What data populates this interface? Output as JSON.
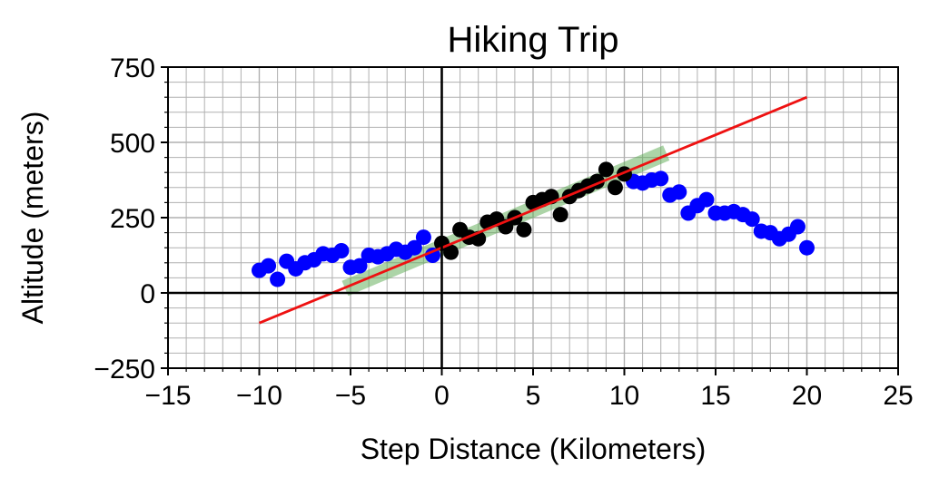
{
  "chart_data": {
    "type": "scatter",
    "title": "Hiking  Trip",
    "xlabel": "Step Distance (Kilometers)",
    "ylabel": "Altitude (meters)",
    "xlim": [
      -15,
      25
    ],
    "ylim": [
      -250,
      750
    ],
    "xticks": [
      -15,
      -10,
      -5,
      0,
      5,
      10,
      15,
      20,
      25
    ],
    "yticks": [
      -250,
      0,
      250,
      500,
      750
    ],
    "x_minor_step": 1,
    "y_minor_step": 50,
    "grid": true,
    "colors": {
      "blue_points": "#0000ff",
      "black_points": "#000000",
      "fit_line": "#ee1111",
      "band": "#5aaa50",
      "grid": "#b0b0b0"
    },
    "series": [
      {
        "points": [
          [
            -10,
            75
          ],
          [
            -9.5,
            90
          ],
          [
            -9,
            45
          ],
          [
            -8.5,
            105
          ],
          [
            -8,
            80
          ],
          [
            -7.5,
            100
          ],
          [
            -7,
            110
          ],
          [
            -6.5,
            130
          ],
          [
            -6,
            125
          ],
          [
            -5.5,
            140
          ],
          [
            -5,
            85
          ],
          [
            -4.5,
            90
          ],
          [
            -4,
            125
          ],
          [
            -3.5,
            120
          ],
          [
            -3,
            130
          ],
          [
            -2.5,
            145
          ],
          [
            -2,
            135
          ],
          [
            -1.5,
            150
          ],
          [
            -1,
            185
          ],
          [
            -0.5,
            125
          ],
          [
            10.5,
            370
          ],
          [
            11,
            365
          ],
          [
            11.5,
            375
          ],
          [
            12,
            380
          ],
          [
            12.5,
            325
          ],
          [
            13,
            335
          ],
          [
            13.5,
            265
          ],
          [
            14,
            290
          ],
          [
            14.5,
            310
          ],
          [
            15,
            265
          ],
          [
            15.5,
            265
          ],
          [
            16,
            270
          ],
          [
            16.5,
            260
          ],
          [
            17,
            245
          ],
          [
            17.5,
            205
          ],
          [
            18,
            200
          ],
          [
            18.5,
            180
          ],
          [
            19,
            195
          ],
          [
            19.5,
            220
          ],
          [
            20,
            150
          ]
        ]
      },
      {
        "points": [
          [
            0,
            165
          ],
          [
            0.5,
            135
          ],
          [
            1,
            210
          ],
          [
            1.5,
            185
          ],
          [
            2,
            180
          ],
          [
            2.5,
            235
          ],
          [
            3,
            245
          ],
          [
            3.5,
            220
          ],
          [
            4,
            250
          ],
          [
            4.5,
            210
          ],
          [
            5,
            300
          ],
          [
            5.5,
            310
          ],
          [
            6,
            320
          ],
          [
            6.5,
            260
          ],
          [
            7,
            320
          ],
          [
            7.5,
            340
          ],
          [
            8,
            355
          ],
          [
            8.5,
            370
          ],
          [
            9,
            410
          ],
          [
            9.5,
            350
          ],
          [
            10,
            395
          ]
        ]
      }
    ],
    "fit_line": {
      "from": [
        -10,
        -100
      ],
      "to": [
        20,
        650
      ]
    },
    "band": {
      "from": [
        -5.3,
        15
      ],
      "to": [
        12.3,
        465
      ],
      "half_width": 18
    }
  }
}
